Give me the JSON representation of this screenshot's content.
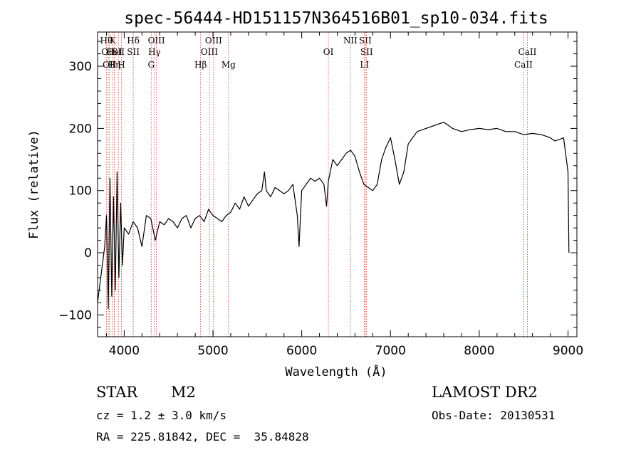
{
  "chart_data": {
    "type": "line",
    "title": "spec-56444-HD151157N364516B01_sp10-034.fits",
    "xlabel": "Wavelength (Å)",
    "ylabel": "Flux (relative)",
    "xlim": [
      3700,
      9100
    ],
    "ylim": [
      -135,
      355
    ],
    "xticks": [
      4000,
      5000,
      6000,
      7000,
      8000,
      9000
    ],
    "yticks": [
      -100,
      0,
      100,
      200,
      300
    ],
    "xtick_labels": [
      "4000",
      "5000",
      "6000",
      "7000",
      "8000",
      "9000"
    ],
    "ytick_labels": [
      "−100",
      "0",
      "100",
      "200",
      "300"
    ],
    "grid": false,
    "series": [
      {
        "x": [
          3700,
          3780,
          3800,
          3820,
          3840,
          3860,
          3880,
          3900,
          3920,
          3940,
          3960,
          3980,
          4000,
          4050,
          4100,
          4150,
          4200,
          4250,
          4300,
          4350,
          4400,
          4450,
          4500,
          4550,
          4600,
          4650,
          4700,
          4750,
          4800,
          4850,
          4900,
          4950,
          5000,
          5050,
          5100,
          5150,
          5200,
          5250,
          5300,
          5350,
          5400,
          5450,
          5500,
          5550,
          5580,
          5600,
          5650,
          5700,
          5750,
          5800,
          5850,
          5900,
          5950,
          5970,
          6000,
          6050,
          6100,
          6150,
          6200,
          6250,
          6280,
          6300,
          6350,
          6400,
          6450,
          6500,
          6550,
          6600,
          6650,
          6700,
          6750,
          6800,
          6850,
          6900,
          6950,
          7000,
          7050,
          7100,
          7150,
          7200,
          7250,
          7300,
          7400,
          7500,
          7600,
          7700,
          7800,
          7900,
          8000,
          8100,
          8200,
          8300,
          8400,
          8500,
          8600,
          8700,
          8800,
          8850,
          8900,
          8950,
          9000,
          9010
        ],
        "y": [
          -80,
          10,
          60,
          -90,
          120,
          -70,
          90,
          -60,
          130,
          -40,
          80,
          -20,
          40,
          30,
          50,
          40,
          10,
          60,
          55,
          20,
          50,
          45,
          55,
          50,
          40,
          55,
          60,
          40,
          55,
          60,
          50,
          70,
          60,
          55,
          50,
          60,
          65,
          80,
          70,
          90,
          75,
          85,
          95,
          100,
          130,
          100,
          90,
          105,
          100,
          95,
          100,
          110,
          60,
          10,
          100,
          110,
          120,
          115,
          120,
          110,
          75,
          115,
          150,
          140,
          150,
          160,
          165,
          155,
          130,
          110,
          105,
          100,
          110,
          150,
          170,
          185,
          150,
          110,
          130,
          175,
          185,
          195,
          200,
          205,
          210,
          200,
          195,
          198,
          200,
          198,
          200,
          195,
          195,
          190,
          192,
          190,
          185,
          180,
          182,
          185,
          130,
          0
        ]
      }
    ],
    "spectral_lines": [
      {
        "wavelength": 3799,
        "label": "Hθ",
        "row": 1
      },
      {
        "wavelength": 3820,
        "label": "OII",
        "row": 2
      },
      {
        "wavelength": 3835,
        "label": "OII",
        "row": 3
      },
      {
        "wavelength": 3870,
        "label": "K",
        "row": 1
      },
      {
        "wavelength": 3889,
        "label": "HeI",
        "row": 2
      },
      {
        "wavelength": 3889,
        "label": "Hη",
        "row": 3
      },
      {
        "wavelength": 3934,
        "label": "SII",
        "row": 2
      },
      {
        "wavelength": 3969,
        "label": "H",
        "row": 3
      },
      {
        "wavelength": 4102,
        "label": "Hδ",
        "row": 1
      },
      {
        "wavelength": 4102,
        "label": "SII",
        "row": 2
      },
      {
        "wavelength": 4304,
        "label": "G",
        "row": 3
      },
      {
        "wavelength": 4341,
        "label": "Hγ",
        "row": 2
      },
      {
        "wavelength": 4363,
        "label": "OIII",
        "row": 1
      },
      {
        "wavelength": 4861,
        "label": "Hβ",
        "row": 3
      },
      {
        "wavelength": 4959,
        "label": "OIII",
        "row": 2
      },
      {
        "wavelength": 5007,
        "label": "OIII",
        "row": 1
      },
      {
        "wavelength": 5175,
        "label": "Mg",
        "row": 3
      },
      {
        "wavelength": 6300,
        "label": "OI",
        "row": 2
      },
      {
        "wavelength": 6548,
        "label": "NII",
        "row": 1
      },
      {
        "wavelength": 6707,
        "label": "LI",
        "row": 3
      },
      {
        "wavelength": 6716,
        "label": "SII",
        "row": 1
      },
      {
        "wavelength": 6731,
        "label": "SII",
        "row": 2
      },
      {
        "wavelength": 8498,
        "label": "CaII",
        "row": 3
      },
      {
        "wavelength": 8542,
        "label": "CaII",
        "row": 2
      }
    ]
  },
  "info": {
    "object_class": "STAR",
    "subclass": "M2",
    "survey": "LAMOST DR2",
    "redshift": "cz = 1.2 ± 3.0 km/s",
    "obs_date": "Obs-Date: 20130531",
    "coords": "RA = 225.81842, DEC =  35.84828"
  },
  "colors": {
    "axis": "#000000",
    "line_marker": "#c0392b",
    "spectrum": "#000000"
  }
}
